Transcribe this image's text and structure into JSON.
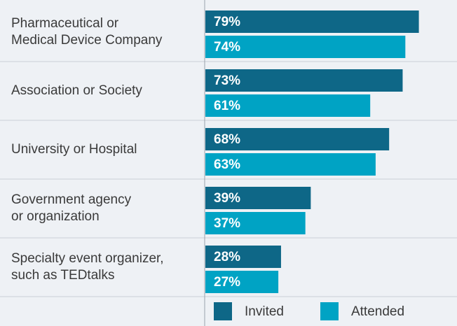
{
  "chart_data": {
    "type": "bar",
    "orientation": "horizontal",
    "categories": [
      [
        "Pharmaceutical or",
        "Medical Device Company"
      ],
      [
        "Association or Society"
      ],
      [
        "University or Hospital"
      ],
      [
        "Government agency",
        "or organization"
      ],
      [
        "Specialty event organizer,",
        "such as TEDtalks"
      ]
    ],
    "series": [
      {
        "name": "Invited",
        "color": "#0e6787",
        "values": [
          79,
          73,
          68,
          39,
          28
        ],
        "value_labels": [
          "79%",
          "73%",
          "68%",
          "39%",
          "28%"
        ]
      },
      {
        "name": "Attended",
        "color": "#00a3c4",
        "values": [
          74,
          61,
          63,
          37,
          27
        ],
        "value_labels": [
          "74%",
          "61%",
          "63%",
          "37%",
          "27%"
        ]
      }
    ],
    "xlim": [
      0,
      90
    ],
    "legend": "bottom"
  }
}
